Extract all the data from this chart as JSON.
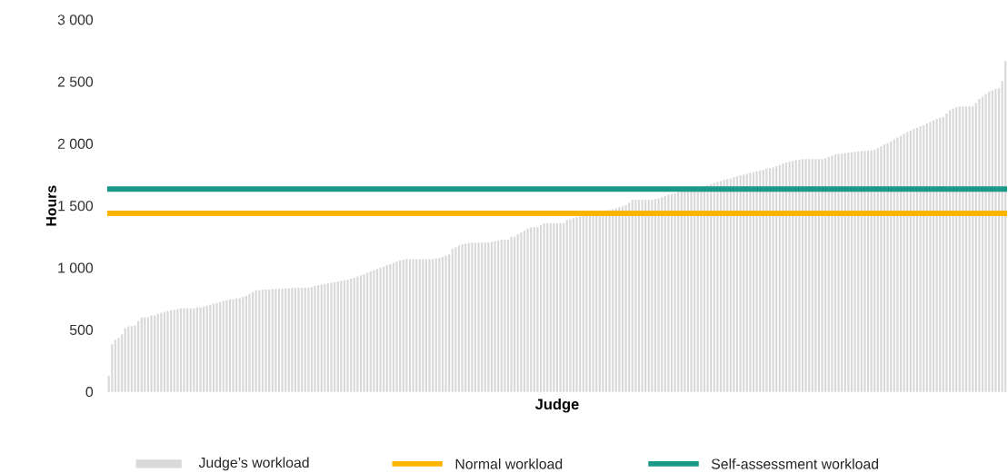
{
  "chart_data": {
    "type": "bar",
    "xlabel": "Judge",
    "ylabel": "Hours",
    "categories": [
      null,
      null,
      null,
      null,
      null,
      null,
      null,
      null,
      null,
      null,
      null,
      null,
      null,
      null,
      null,
      null,
      null,
      null,
      null,
      null,
      null,
      null,
      null,
      null,
      null,
      null,
      null,
      null,
      null,
      null,
      null,
      null,
      null,
      null,
      null,
      null,
      null,
      null,
      null,
      null,
      null,
      null,
      null,
      null,
      null,
      null,
      null,
      null,
      null,
      null,
      null,
      null,
      null,
      null,
      null,
      null,
      null,
      null,
      null,
      null,
      null,
      null,
      null,
      null,
      null,
      null,
      null,
      null,
      null,
      null,
      null,
      null,
      null,
      null,
      null,
      null,
      null,
      null,
      null,
      null,
      null,
      null,
      null,
      null,
      null,
      null,
      null,
      null,
      null,
      null,
      null,
      null,
      null,
      null,
      null,
      null,
      null,
      null,
      null,
      null,
      null,
      null,
      null,
      null,
      null,
      null,
      null,
      null,
      null,
      null,
      null,
      null,
      null,
      null,
      null,
      null,
      null,
      null,
      null,
      null,
      null,
      null,
      null,
      null,
      null,
      null,
      null,
      null,
      null,
      null,
      null,
      null,
      null,
      null,
      null,
      null,
      null,
      null,
      null,
      null,
      null,
      null,
      null,
      null,
      null,
      null,
      null,
      null,
      null,
      null,
      null,
      null,
      null,
      null,
      null,
      null,
      null,
      null,
      null,
      null,
      null,
      null,
      null,
      null,
      null,
      null,
      null,
      null,
      null,
      null,
      null,
      null,
      null,
      null,
      null,
      null,
      null,
      null,
      null,
      null,
      null,
      null,
      null,
      null,
      null,
      null,
      null,
      null,
      null,
      null,
      null,
      null,
      null,
      null,
      null,
      null,
      null,
      null,
      null,
      null,
      null,
      null,
      null,
      null,
      null,
      null,
      null,
      null,
      null,
      null,
      null,
      null,
      null,
      null,
      null,
      null,
      null,
      null,
      null,
      null,
      null,
      null,
      null,
      null,
      null,
      null,
      null,
      null,
      null,
      null,
      null,
      null,
      null,
      null,
      null,
      null,
      null,
      null,
      null,
      null,
      null,
      null,
      null,
      null,
      null,
      null,
      null,
      null,
      null,
      null,
      null,
      null,
      null,
      null,
      null,
      null,
      null,
      null,
      null,
      null,
      null,
      null,
      null,
      null,
      null,
      null,
      null,
      null,
      null,
      null,
      null,
      null,
      null,
      null,
      null
    ],
    "series": [
      {
        "name": "Judge’s workload",
        "color": "#d9d9d9",
        "values": [
          130,
          384,
          420,
          435,
          464,
          514,
          529,
          529,
          536,
          572,
          601,
          601,
          601,
          616,
          616,
          630,
          638,
          645,
          652,
          659,
          659,
          667,
          674,
          674,
          674,
          674,
          674,
          681,
          681,
          688,
          696,
          703,
          710,
          717,
          725,
          732,
          739,
          746,
          746,
          754,
          754,
          767,
          775,
          790,
          805,
          820,
          820,
          825,
          825,
          825,
          830,
          830,
          830,
          833,
          835,
          835,
          838,
          838,
          840,
          840,
          840,
          840,
          845,
          855,
          860,
          865,
          870,
          875,
          880,
          885,
          890,
          895,
          900,
          905,
          913,
          920,
          930,
          940,
          950,
          960,
          970,
          980,
          990,
          1000,
          1010,
          1022,
          1030,
          1040,
          1050,
          1060,
          1065,
          1070,
          1070,
          1070,
          1070,
          1070,
          1070,
          1070,
          1070,
          1070,
          1075,
          1080,
          1090,
          1100,
          1108,
          1154,
          1165,
          1180,
          1190,
          1195,
          1200,
          1203,
          1203,
          1203,
          1203,
          1203,
          1203,
          1210,
          1215,
          1220,
          1227,
          1227,
          1227,
          1251,
          1251,
          1270,
          1287,
          1300,
          1317,
          1328,
          1328,
          1328,
          1345,
          1360,
          1360,
          1360,
          1360,
          1360,
          1360,
          1360,
          1384,
          1392,
          1400,
          1408,
          1415,
          1420,
          1425,
          1430,
          1435,
          1440,
          1445,
          1450,
          1458,
          1465,
          1473,
          1480,
          1488,
          1496,
          1505,
          1525,
          1548,
          1548,
          1548,
          1548,
          1548,
          1548,
          1548,
          1555,
          1560,
          1570,
          1580,
          1590,
          1595,
          1600,
          1610,
          1615,
          1620,
          1625,
          1630,
          1640,
          1645,
          1650,
          1660,
          1667,
          1675,
          1685,
          1692,
          1700,
          1710,
          1715,
          1720,
          1730,
          1740,
          1745,
          1750,
          1758,
          1765,
          1770,
          1780,
          1785,
          1790,
          1800,
          1805,
          1810,
          1820,
          1830,
          1840,
          1850,
          1855,
          1862,
          1869,
          1873,
          1877,
          1877,
          1877,
          1877,
          1877,
          1877,
          1877,
          1885,
          1895,
          1905,
          1915,
          1918,
          1920,
          1925,
          1930,
          1932,
          1935,
          1939,
          1940,
          1942,
          1945,
          1948,
          1950,
          1965,
          1980,
          1995,
          2007,
          2020,
          2036,
          2050,
          2065,
          2080,
          2095,
          2108,
          2120,
          2130,
          2140,
          2150,
          2164,
          2175,
          2190,
          2200,
          2210,
          2217,
          2245,
          2270,
          2285,
          2295,
          2302,
          2302,
          2302,
          2302,
          2302,
          2330,
          2362,
          2380,
          2400,
          2422,
          2430,
          2440,
          2447,
          2507,
          2667
        ]
      }
    ],
    "ylim": [
      0,
      3000
    ],
    "yticks": [
      0,
      500,
      {
        "value": 1000,
        "label": "1 000"
      },
      {
        "value": 1500,
        "label": "1 500"
      },
      {
        "value": 2000,
        "label": "2 000"
      },
      {
        "value": 2500,
        "label": "2 500"
      },
      {
        "value": 3000,
        "label": "3 000"
      }
    ],
    "ref_lines": [
      {
        "axis": "y",
        "value": 1440,
        "label": "Normal workload",
        "color": "#ffb400"
      },
      {
        "axis": "y",
        "value": 1635,
        "label": "Self-assessment workload",
        "color": "#1a9988"
      }
    ],
    "tick_labels": "y",
    "legend": "bottom"
  }
}
